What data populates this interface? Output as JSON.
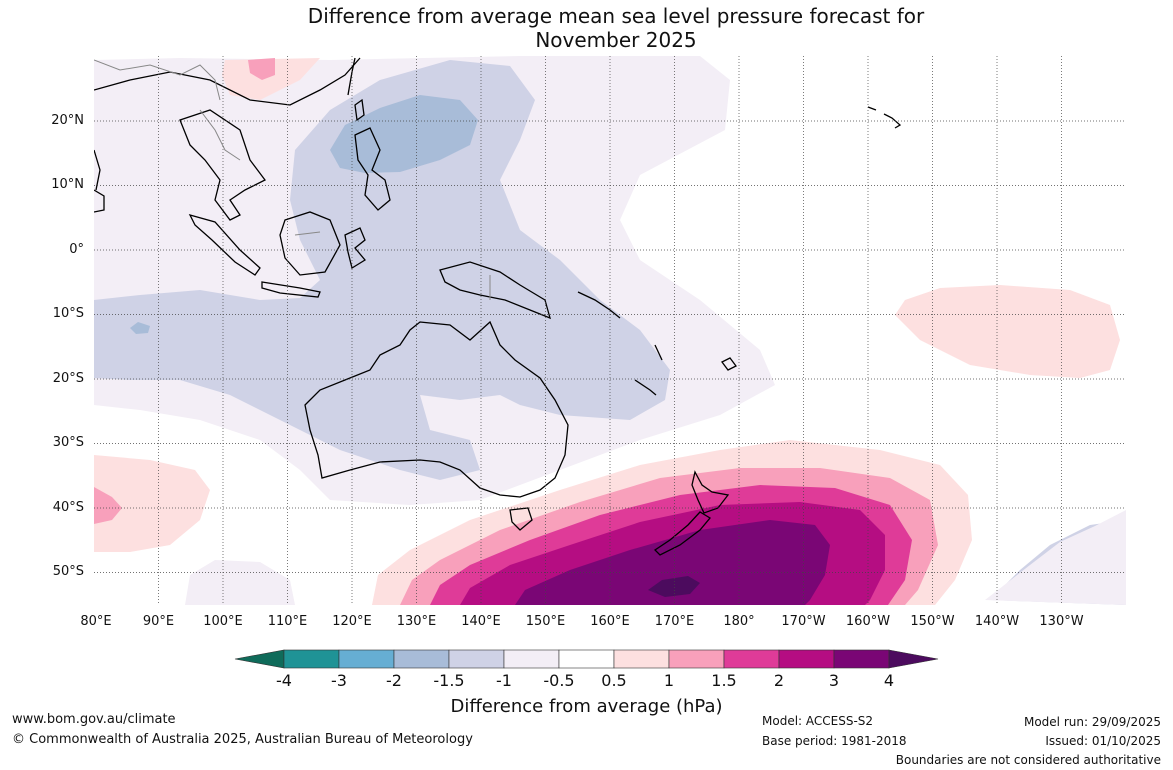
{
  "title": {
    "line1": "Difference from average mean sea level pressure forecast for",
    "line2": "November 2025"
  },
  "lat_labels": [
    "20°N",
    "10°N",
    "0°",
    "10°S",
    "20°S",
    "30°S",
    "40°S",
    "50°S"
  ],
  "lon_labels": [
    "80°E",
    "90°E",
    "100°E",
    "110°E",
    "120°E",
    "130°E",
    "140°E",
    "150°E",
    "160°E",
    "170°E",
    "180°",
    "170°W",
    "160°W",
    "150°W",
    "140°W",
    "130°W"
  ],
  "colorbar": {
    "title": "Difference from average (hPa)",
    "tick_labels": [
      "-4",
      "-3",
      "-2",
      "-1.5",
      "-1",
      "-0.5",
      "0.5",
      "1",
      "1.5",
      "2",
      "3",
      "4"
    ],
    "colors": [
      "#0f6b5a",
      "#1f9396",
      "#66aed3",
      "#a8bcd8",
      "#cfd2e6",
      "#f3eef6",
      "#ffffff",
      "#fde0e0",
      "#f8a0bb",
      "#df3b98",
      "#b50d82",
      "#7a0675",
      "#4c0b5e"
    ]
  },
  "legend_colors": {
    "neg_1_5": "#a8bcd8",
    "neg_1": "#cfd2e6",
    "neg_0_5": "#f3eef6",
    "pos_0_5": "#fde0e0",
    "pos_1": "#f8a0bb",
    "pos_1_5": "#df3b98",
    "pos_2": "#b50d82",
    "pos_3": "#7a0675",
    "pos_4": "#4c0b5e"
  },
  "footer": {
    "website": "www.bom.gov.au/climate",
    "copyright": "© Commonwealth of Australia 2025, Australian Bureau of Meteorology",
    "model": "Model: ACCESS-S2",
    "base_period": "Base period: 1981-2018",
    "model_run": "Model run: 29/09/2025",
    "issued": "Issued: 01/10/2025",
    "disclaimer": "Boundaries are not considered authoritative"
  }
}
